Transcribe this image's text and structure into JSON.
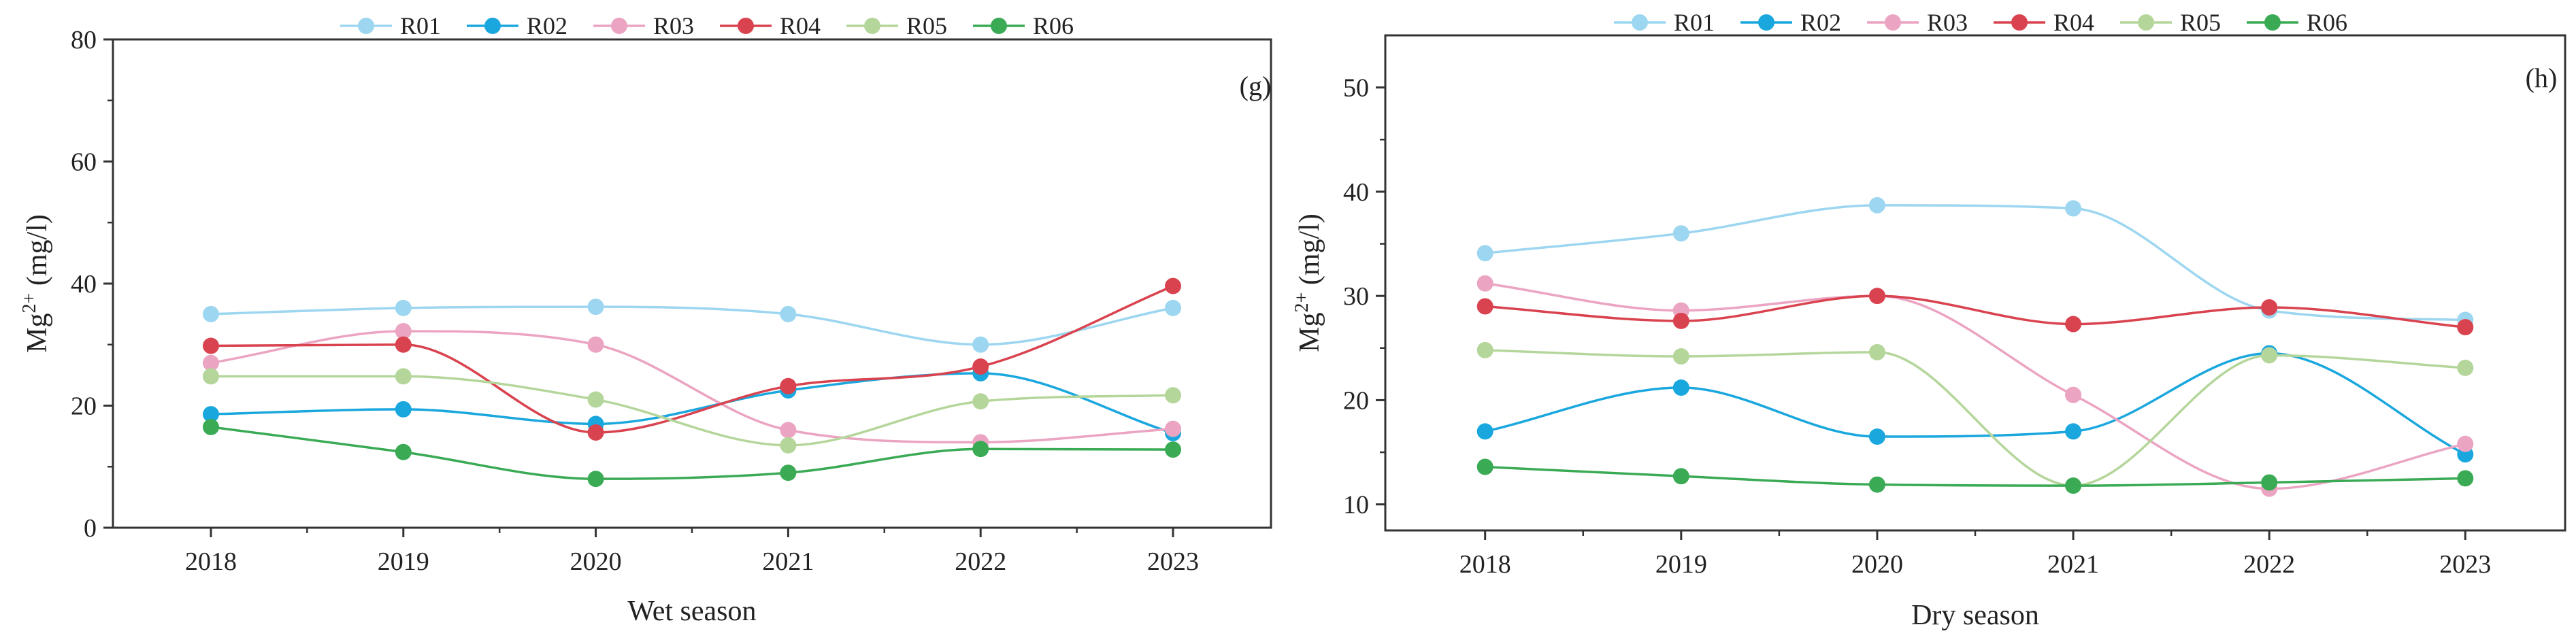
{
  "chart_data": [
    {
      "type": "line",
      "panel_label": "(g)",
      "title": "",
      "xlabel": "Wet season",
      "ylabel": "Mg²⁺ (mg/l)",
      "ylabel_base": "Mg",
      "ylabel_sup": "2+",
      "ylabel_unit": " (mg/l)",
      "categories": [
        "2018",
        "2019",
        "2020",
        "2021",
        "2022",
        "2023"
      ],
      "ylim": [
        0,
        80
      ],
      "yticks": [
        "0",
        "20",
        "40",
        "60",
        "80"
      ],
      "grid": false,
      "legend": "top",
      "series": [
        {
          "name": "R01",
          "color": "#9dd6f0",
          "values": [
            35.0,
            36.0,
            36.2,
            35.0,
            30.0,
            36.0
          ]
        },
        {
          "name": "R02",
          "color": "#1aa7de",
          "values": [
            18.6,
            19.4,
            17.0,
            22.5,
            25.3,
            15.5
          ]
        },
        {
          "name": "R03",
          "color": "#eba4c2",
          "values": [
            27.0,
            32.2,
            30.0,
            16.0,
            14.0,
            16.2
          ]
        },
        {
          "name": "R04",
          "color": "#d9434f",
          "values": [
            29.8,
            30.0,
            15.6,
            23.2,
            26.4,
            39.6
          ]
        },
        {
          "name": "R05",
          "color": "#b5d69b",
          "values": [
            24.8,
            24.8,
            21.0,
            13.5,
            20.7,
            21.7
          ]
        },
        {
          "name": "R06",
          "color": "#3aaa55",
          "values": [
            16.5,
            12.4,
            8.0,
            9.0,
            12.9,
            12.8
          ]
        }
      ]
    },
    {
      "type": "line",
      "panel_label": "(h)",
      "title": "",
      "xlabel": "Dry season",
      "ylabel": "Mg²⁺ (mg/l)",
      "ylabel_base": "Mg",
      "ylabel_sup": "2+",
      "ylabel_unit": " (mg/l)",
      "categories": [
        "2018",
        "2019",
        "2020",
        "2021",
        "2022",
        "2023"
      ],
      "ylim": [
        7.5,
        55
      ],
      "yticks": [
        "10",
        "20",
        "30",
        "40",
        "50"
      ],
      "grid": false,
      "legend": "top",
      "series": [
        {
          "name": "R01",
          "color": "#9dd6f0",
          "values": [
            34.1,
            36.0,
            38.7,
            38.4,
            28.6,
            27.7
          ]
        },
        {
          "name": "R02",
          "color": "#1aa7de",
          "values": [
            17.0,
            21.2,
            16.5,
            17.0,
            24.5,
            14.8
          ]
        },
        {
          "name": "R03",
          "color": "#eba4c2",
          "values": [
            31.2,
            28.6,
            30.0,
            20.5,
            11.5,
            15.8
          ]
        },
        {
          "name": "R04",
          "color": "#d9434f",
          "values": [
            29.0,
            27.6,
            30.0,
            27.3,
            28.9,
            27.0
          ]
        },
        {
          "name": "R05",
          "color": "#b5d69b",
          "values": [
            24.8,
            24.2,
            24.6,
            11.8,
            24.3,
            23.1
          ]
        },
        {
          "name": "R06",
          "color": "#3aaa55",
          "values": [
            13.6,
            12.7,
            11.9,
            11.8,
            12.1,
            12.5
          ]
        }
      ]
    }
  ]
}
